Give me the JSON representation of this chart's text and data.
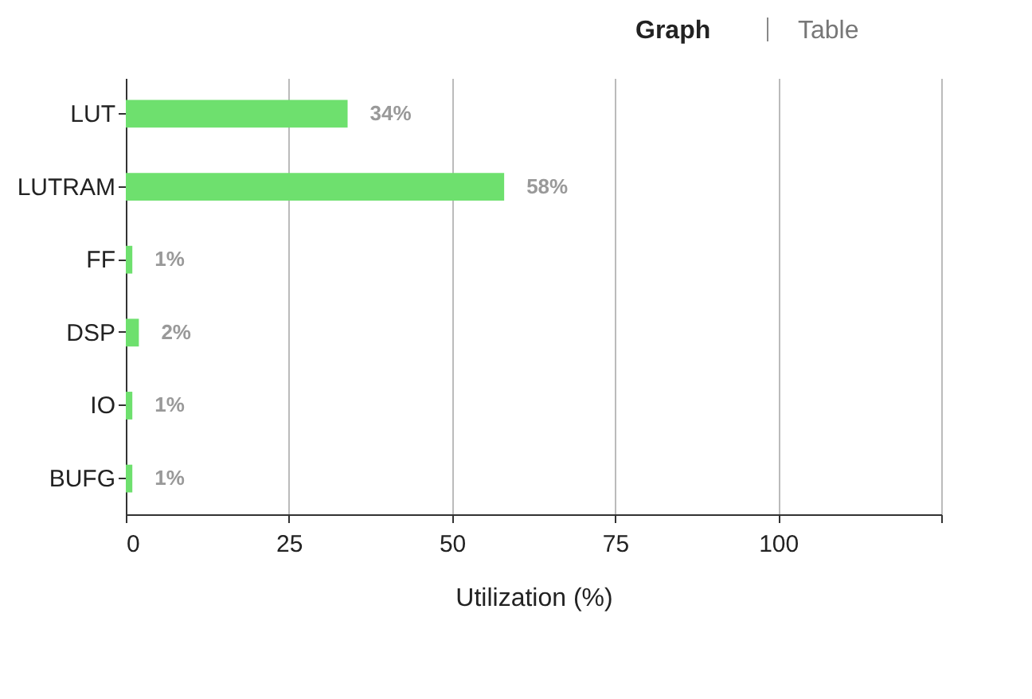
{
  "chart_data": {
    "type": "bar",
    "orientation": "horizontal",
    "xlabel": "Utilization (%)",
    "categories": [
      "LUT",
      "LUTRAM",
      "FF",
      "DSP",
      "IO",
      "BUFG"
    ],
    "values": [
      34,
      58,
      1,
      2,
      1,
      1
    ],
    "value_labels": [
      "34%",
      "58%",
      "1%",
      "2%",
      "1%",
      "1%"
    ],
    "color": "#6ee06e",
    "xlim": [
      0,
      125
    ],
    "xticks": [
      0,
      25,
      50,
      75,
      100,
      {
        "value": 125,
        "label": null
      }
    ],
    "grid": "x",
    "annotations": [
      "Graph",
      "Table"
    ]
  }
}
